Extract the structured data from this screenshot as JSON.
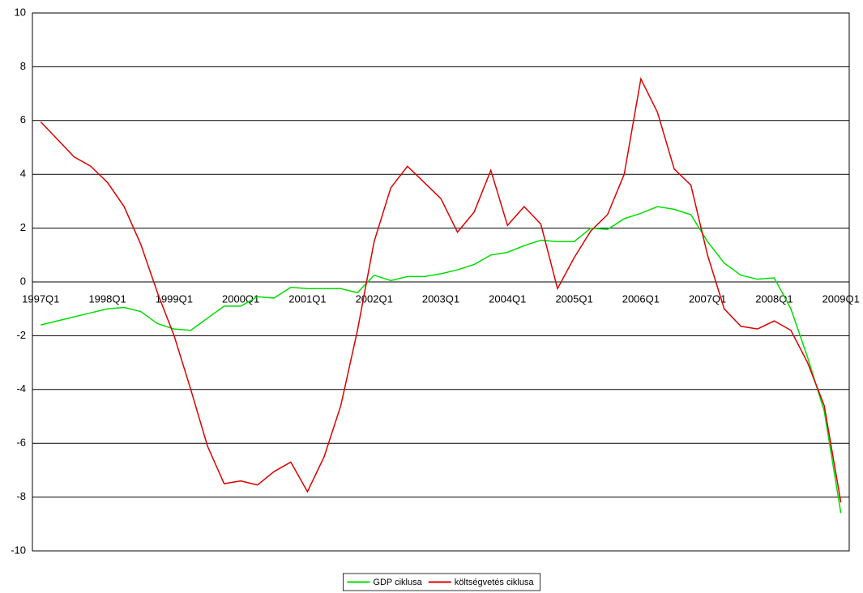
{
  "chart_data": {
    "type": "line",
    "categories": [
      "1997Q1",
      null,
      null,
      null,
      "1998Q1",
      null,
      null,
      null,
      "1999Q1",
      null,
      null,
      null,
      "2000Q1",
      null,
      null,
      null,
      "2001Q1",
      null,
      null,
      null,
      "2002Q1",
      null,
      null,
      null,
      "2003Q1",
      null,
      null,
      null,
      "2004Q1",
      null,
      null,
      null,
      "2005Q1",
      null,
      null,
      null,
      "2006Q1",
      null,
      null,
      null,
      "2007Q1",
      null,
      null,
      null,
      "2008Q1",
      null,
      null,
      null,
      "2009Q1"
    ],
    "series": [
      {
        "name": "GDP ciklusa",
        "color": "#00dd00",
        "values": [
          -1.6,
          -1.45,
          -1.3,
          -1.15,
          -1.0,
          -0.95,
          -1.1,
          -1.55,
          -1.75,
          -1.8,
          -1.35,
          -0.9,
          -0.9,
          -0.55,
          -0.6,
          -0.2,
          -0.25,
          -0.25,
          -0.25,
          -0.4,
          0.25,
          0.05,
          0.2,
          0.2,
          0.3,
          0.45,
          0.65,
          1.0,
          1.1,
          1.35,
          1.55,
          1.5,
          1.5,
          2.0,
          1.95,
          2.35,
          2.55,
          2.8,
          2.7,
          2.5,
          1.5,
          0.7,
          0.25,
          0.1,
          0.15,
          -1.0,
          -2.8,
          -4.8,
          -8.6
        ]
      },
      {
        "name": "költségvetés ciklusa",
        "color": "#dd0000",
        "values": [
          5.95,
          5.3,
          4.65,
          4.3,
          3.7,
          2.8,
          1.4,
          -0.4,
          -2.0,
          -4.0,
          -6.1,
          -7.5,
          -7.4,
          -7.55,
          -7.05,
          -6.7,
          -7.8,
          -6.5,
          -4.6,
          -1.8,
          1.5,
          3.5,
          4.3,
          3.7,
          3.1,
          1.85,
          2.6,
          4.15,
          2.1,
          2.8,
          2.15,
          -0.25,
          0.9,
          1.9,
          2.5,
          4.0,
          7.55,
          6.3,
          4.2,
          3.6,
          1.0,
          -1.0,
          -1.65,
          -1.75,
          -1.45,
          -1.8,
          -3.0,
          -4.6,
          -8.2
        ]
      }
    ],
    "ylim": [
      -10,
      10
    ],
    "yticks": [
      -10,
      -8,
      -6,
      -4,
      -2,
      0,
      2,
      4,
      6,
      8,
      10
    ],
    "grid": true,
    "legend": "bottom"
  }
}
